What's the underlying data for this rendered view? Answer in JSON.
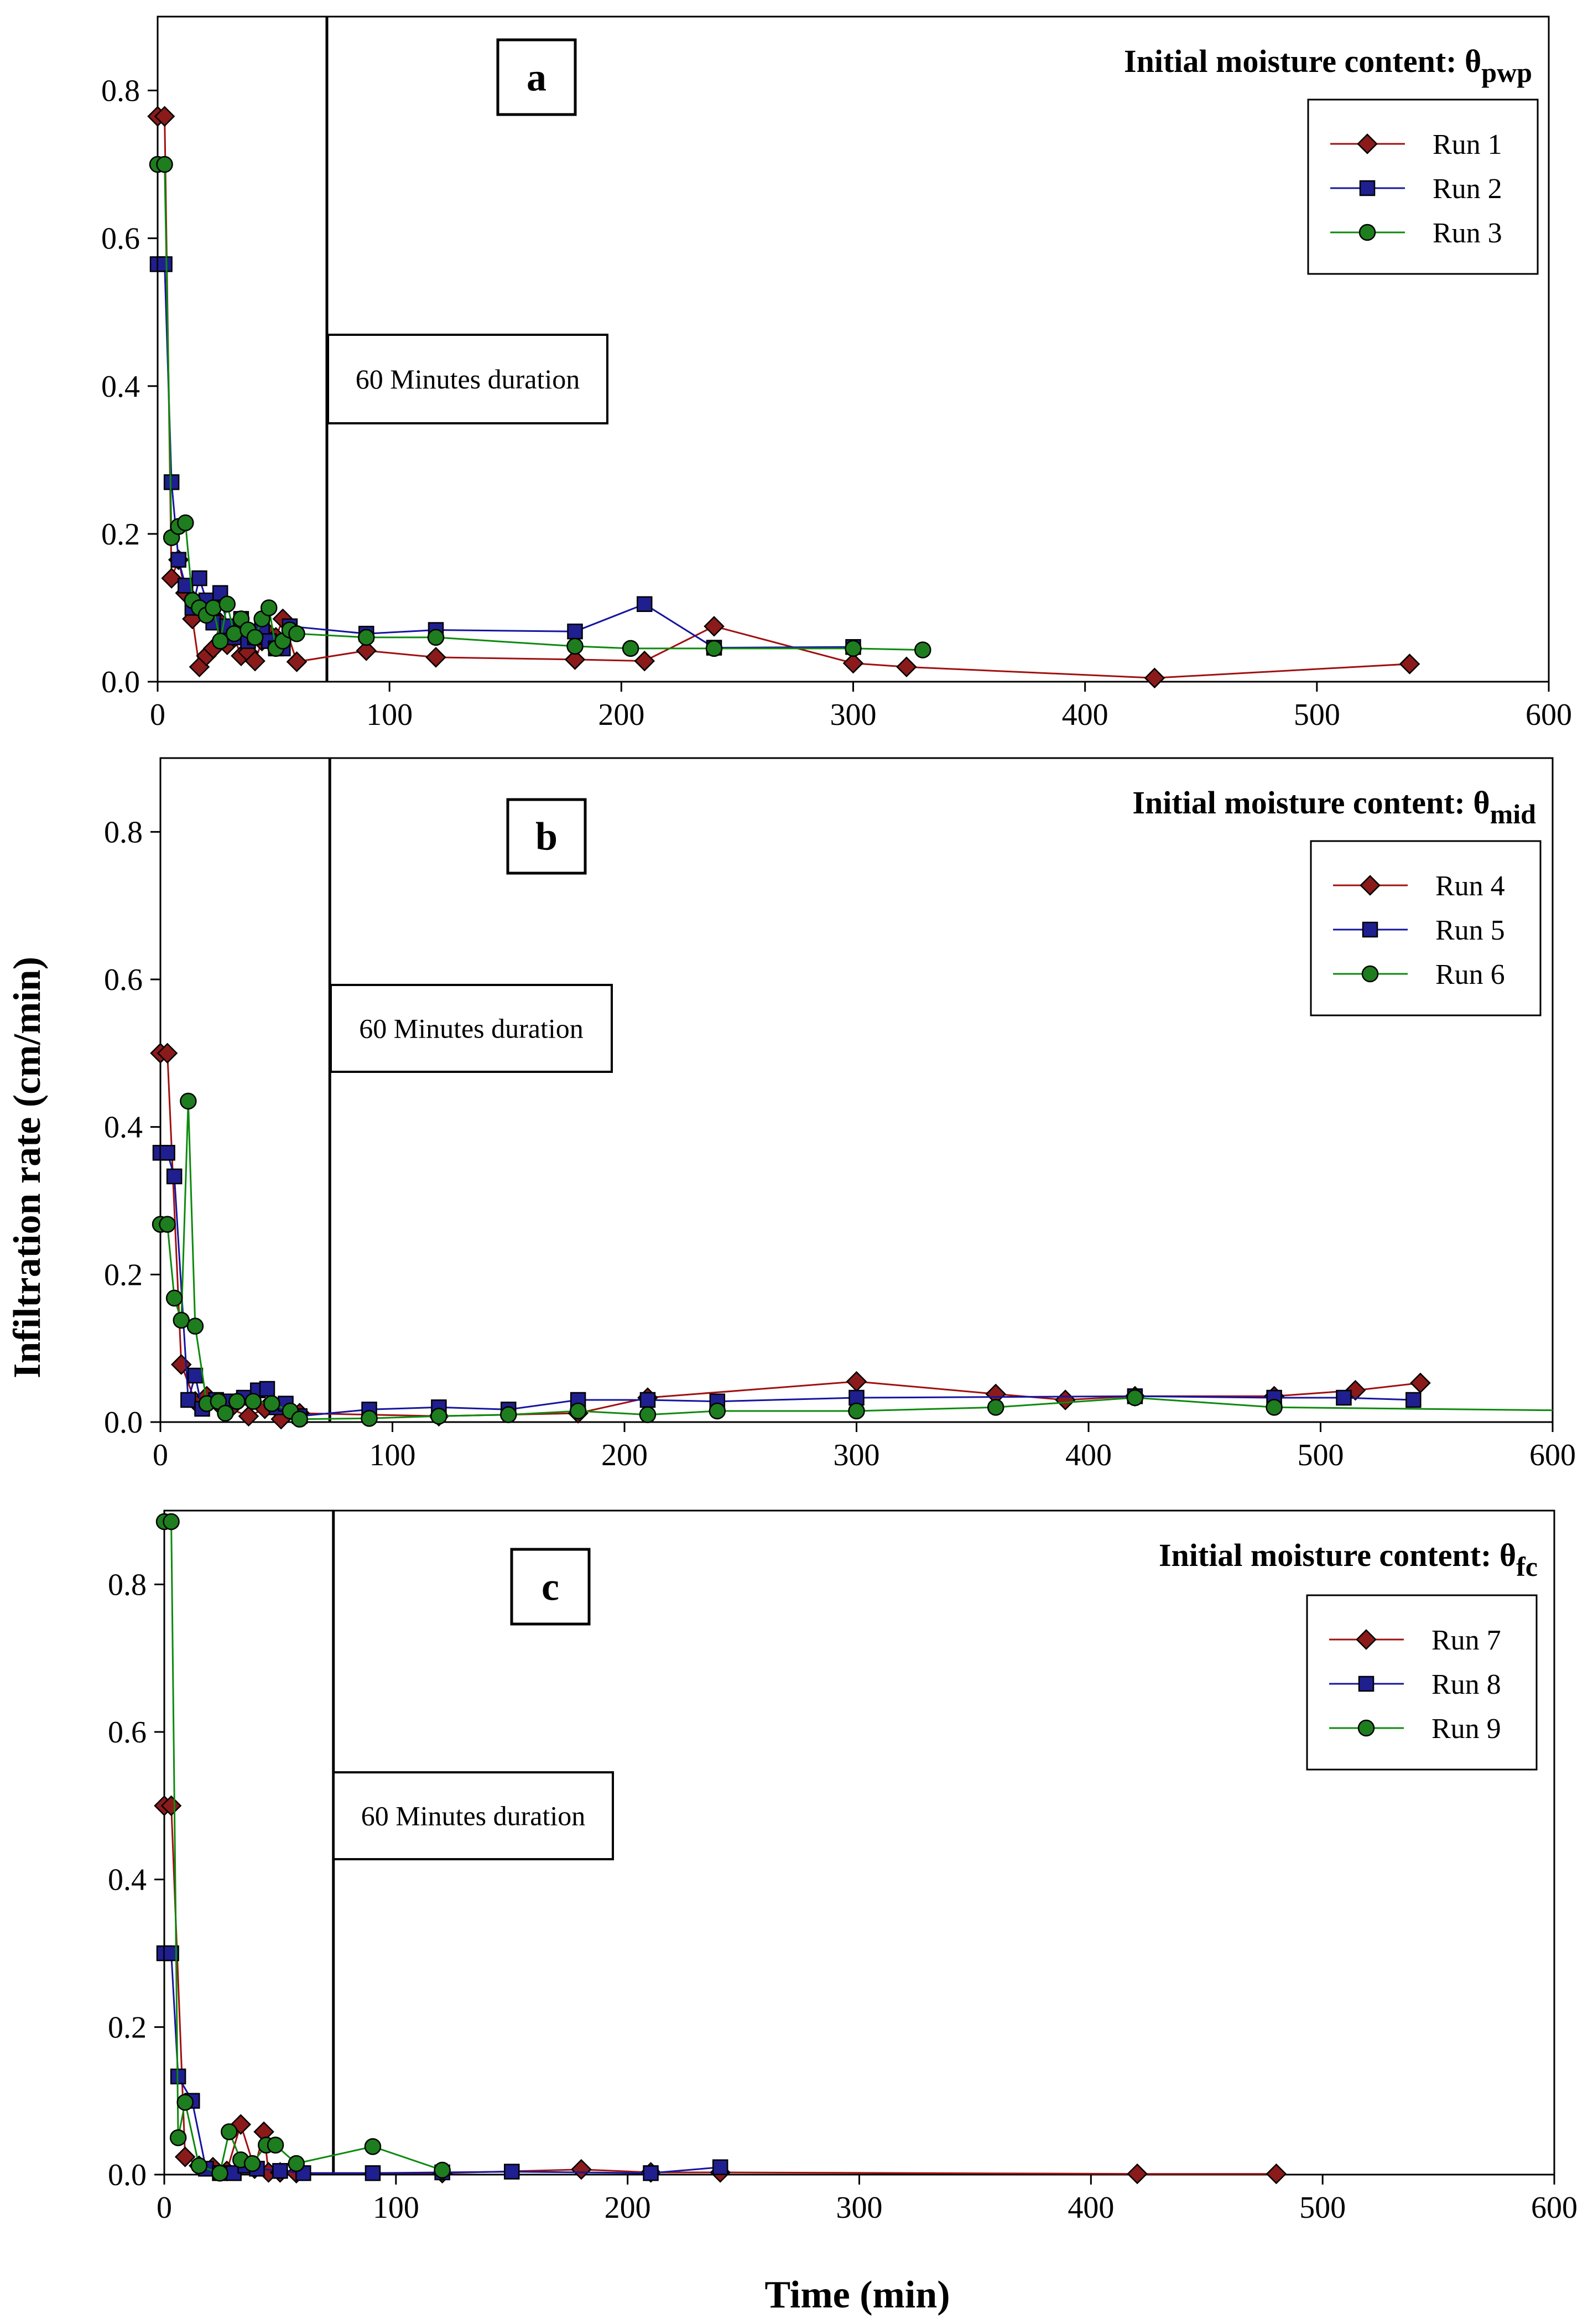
{
  "chart_data": {
    "type": "line",
    "ylabel": "Infiltration rate (cm/min)",
    "xlabel": "Time (min)",
    "xlim": [
      0,
      600
    ],
    "ylim": [
      0,
      0.9
    ],
    "xticks": [
      "0",
      "100",
      "200",
      "300",
      "400",
      "500",
      "600"
    ],
    "yticks": [
      "0.0",
      "0.2",
      "0.4",
      "0.6",
      "0.8"
    ],
    "colors": {
      "diamond": "#8b1a1a",
      "square": "#1f1f8f",
      "circle": "#1e7d1e",
      "diamond_line": "#a01010",
      "square_line": "#1515a0",
      "circle_line": "#0d8a0d"
    },
    "panels": [
      {
        "letter": "a",
        "header": "Initial moisture content: θ",
        "header_sub": "pwp",
        "duration_label": "60 Minutes duration",
        "duration_x": 73,
        "series": [
          {
            "name": "Run 1",
            "marker": "diamond",
            "x": [
              0,
              3,
              6,
              9,
              12,
              15,
              18,
              21,
              24,
              27,
              30,
              33,
              36,
              39,
              42,
              45,
              48,
              51,
              54,
              60,
              90,
              120,
              180,
              210,
              240,
              300,
              323,
              430,
              540
            ],
            "y": [
              0.765,
              0.765,
              0.14,
              0.165,
              0.12,
              0.085,
              0.02,
              0.035,
              0.045,
              0.08,
              0.05,
              0.06,
              0.035,
              0.04,
              0.028,
              0.055,
              0.065,
              0.06,
              0.085,
              0.027,
              0.042,
              0.033,
              0.03,
              0.028,
              0.075,
              0.025,
              0.02,
              0.005,
              0.024
            ]
          },
          {
            "name": "Run 2",
            "marker": "square",
            "x": [
              0,
              3,
              6,
              9,
              12,
              15,
              18,
              21,
              24,
              27,
              30,
              33,
              36,
              39,
              42,
              45,
              48,
              51,
              54,
              57,
              90,
              120,
              180,
              210,
              240,
              300
            ],
            "y": [
              0.565,
              0.565,
              0.27,
              0.165,
              0.13,
              0.1,
              0.14,
              0.11,
              0.08,
              0.12,
              0.075,
              0.06,
              0.085,
              0.055,
              0.06,
              0.07,
              0.055,
              0.045,
              0.045,
              0.075,
              0.065,
              0.07,
              0.068,
              0.105,
              0.046,
              0.047
            ]
          },
          {
            "name": "Run 3",
            "marker": "circle",
            "x": [
              0,
              3,
              6,
              9,
              12,
              15,
              18,
              21,
              24,
              27,
              30,
              33,
              36,
              39,
              42,
              45,
              48,
              51,
              54,
              57,
              60,
              90,
              120,
              180,
              204,
              240,
              300,
              330
            ],
            "y": [
              0.7,
              0.7,
              0.195,
              0.21,
              0.215,
              0.11,
              0.1,
              0.09,
              0.1,
              0.055,
              0.105,
              0.065,
              0.085,
              0.07,
              0.06,
              0.085,
              0.1,
              0.045,
              0.055,
              0.07,
              0.065,
              0.06,
              0.06,
              0.048,
              0.045,
              0.045,
              0.045,
              0.043
            ]
          }
        ]
      },
      {
        "letter": "b",
        "header": "Initial moisture content: θ",
        "header_sub": "mid",
        "duration_label": "60 Minutes duration",
        "duration_x": 73,
        "series": [
          {
            "name": "Run 4",
            "marker": "diamond",
            "x": [
              0,
              3,
              9,
              15,
              20,
              25,
              30,
              38,
              45,
              52,
              60,
              120,
              180,
              210,
              300,
              360,
              390,
              420,
              480,
              515,
              543
            ],
            "y": [
              0.5,
              0.5,
              0.078,
              0.028,
              0.035,
              0.025,
              0.018,
              0.008,
              0.018,
              0.004,
              0.012,
              0.008,
              0.012,
              0.033,
              0.055,
              0.038,
              0.03,
              0.035,
              0.035,
              0.043,
              0.053
            ]
          },
          {
            "name": "Run 5",
            "marker": "square",
            "x": [
              0,
              3,
              6,
              12,
              15,
              18,
              24,
              30,
              36,
              42,
              46,
              50,
              54,
              60,
              90,
              120,
              150,
              180,
              210,
              240,
              300,
              420,
              480,
              510,
              540
            ],
            "y": [
              0.365,
              0.365,
              0.333,
              0.03,
              0.063,
              0.018,
              0.03,
              0.028,
              0.033,
              0.043,
              0.045,
              0.02,
              0.025,
              0.008,
              0.017,
              0.02,
              0.017,
              0.03,
              0.03,
              0.028,
              0.033,
              0.035,
              0.033,
              0.033,
              0.03
            ]
          },
          {
            "name": "Run 6",
            "marker": "circle",
            "x": [
              0,
              3,
              6,
              9,
              12,
              15,
              20,
              25,
              28,
              33,
              40,
              48,
              56,
              60,
              90,
              120,
              150,
              180,
              210,
              240,
              300,
              360,
              420,
              480,
              600
            ],
            "y": [
              0.268,
              0.268,
              0.168,
              0.138,
              0.435,
              0.13,
              0.025,
              0.028,
              0.012,
              0.028,
              0.028,
              0.025,
              0.015,
              0.004,
              0.005,
              0.008,
              0.01,
              0.015,
              0.01,
              0.015,
              0.015,
              0.02,
              0.033,
              0.02,
              0.016
            ]
          }
        ]
      },
      {
        "letter": "c",
        "header": "Initial moisture content: θ",
        "header_sub": "fc",
        "duration_label": "60 Minutes duration",
        "duration_x": 73,
        "series": [
          {
            "name": "Run 7",
            "marker": "diamond",
            "x": [
              0,
              3,
              9,
              15,
              21,
              27,
              33,
              39,
              43,
              45,
              50,
              57,
              120,
              180,
              210,
              240,
              420,
              480
            ],
            "y": [
              0.5,
              0.5,
              0.024,
              0.012,
              0.01,
              0.005,
              0.068,
              0.008,
              0.058,
              0.003,
              0.003,
              0.002,
              0.002,
              0.007,
              0.003,
              0.003,
              0.001,
              0.001
            ]
          },
          {
            "name": "Run 8",
            "marker": "square",
            "x": [
              0,
              3,
              6,
              12,
              18,
              24,
              30,
              35,
              40,
              50,
              60,
              90,
              120,
              150,
              210,
              240
            ],
            "y": [
              0.3,
              0.3,
              0.133,
              0.1,
              0.008,
              0.002,
              0.002,
              0.012,
              0.008,
              0.005,
              0.002,
              0.002,
              0.003,
              0.004,
              0.002,
              0.01
            ]
          },
          {
            "name": "Run 9",
            "marker": "circle",
            "x": [
              0,
              3,
              6,
              9,
              15,
              24,
              28,
              33,
              38,
              44,
              48,
              57,
              90,
              120
            ],
            "y": [
              0.885,
              0.885,
              0.05,
              0.098,
              0.012,
              0.002,
              0.058,
              0.02,
              0.015,
              0.04,
              0.04,
              0.015,
              0.038,
              0.006
            ]
          }
        ]
      }
    ]
  }
}
